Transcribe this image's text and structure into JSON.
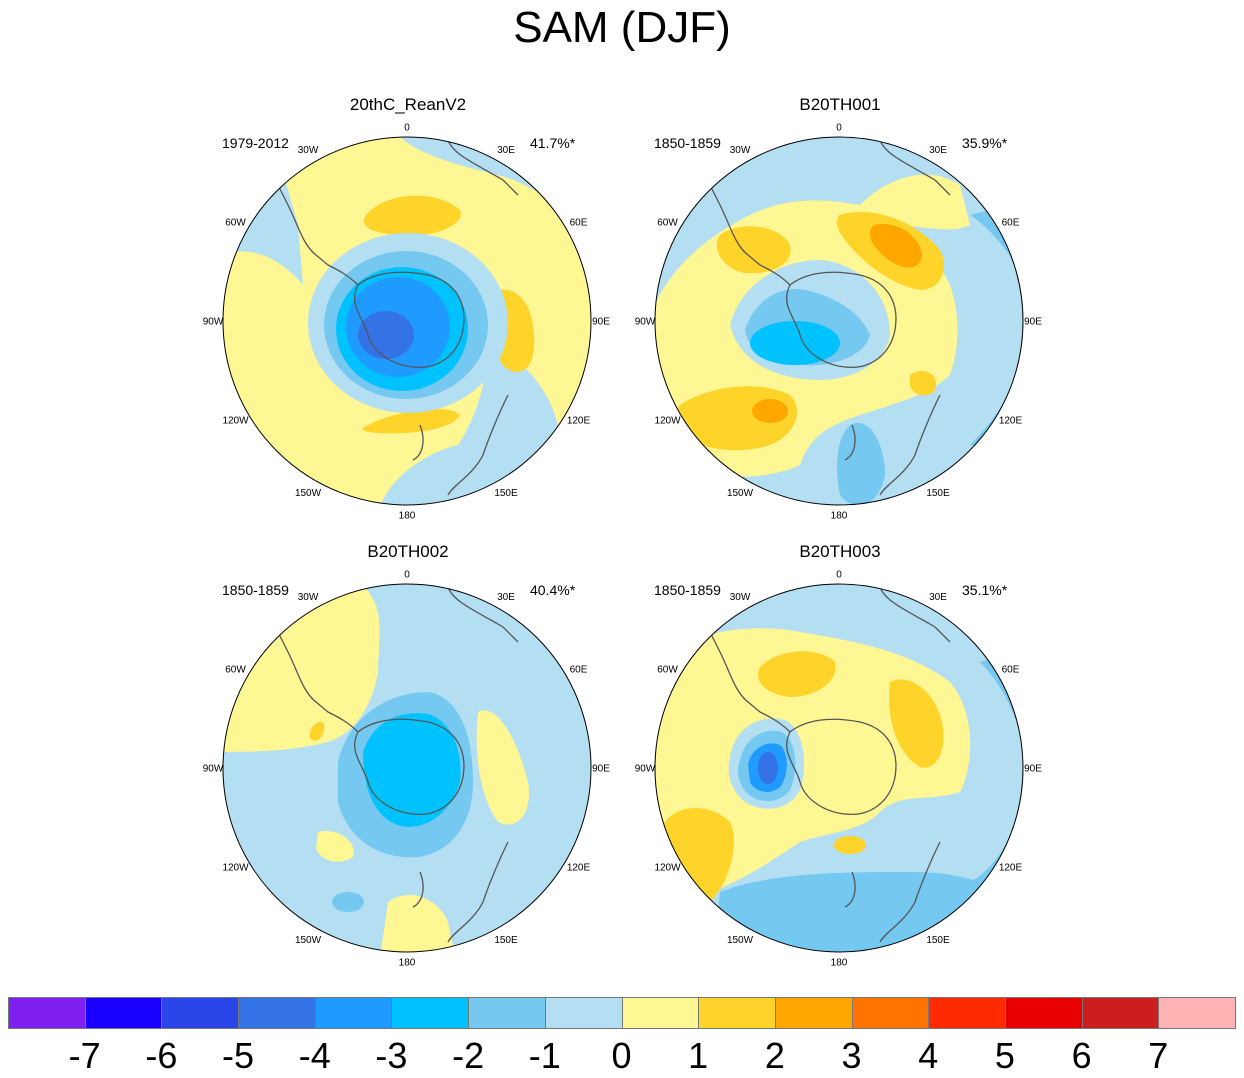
{
  "title": "SAM (DJF)",
  "lon_labels": [
    "0",
    "30E",
    "60E",
    "90E",
    "120E",
    "150E",
    "180",
    "150W",
    "120W",
    "90W",
    "60W",
    "30W"
  ],
  "panels": [
    {
      "title": "20thC_ReanV2",
      "period": "1979-2012",
      "variance": "41.7%*"
    },
    {
      "title": "B20TH001",
      "period": "1850-1859",
      "variance": "35.9%*"
    },
    {
      "title": "B20TH002",
      "period": "1850-1859",
      "variance": "40.4%*"
    },
    {
      "title": "B20TH003",
      "period": "1850-1859",
      "variance": "35.1%*"
    }
  ],
  "colorbar": {
    "colors": [
      "#7f1ff0",
      "#1a00ff",
      "#2b46e8",
      "#3473e6",
      "#1f9bff",
      "#00c2ff",
      "#75c8f0",
      "#b4def2",
      "#fff694",
      "#ffd42a",
      "#ffa600",
      "#ff7300",
      "#ff2a00",
      "#e80000",
      "#cc1e1e",
      "#ffb3b3"
    ],
    "labels": [
      "-7",
      "-6",
      "-5",
      "-4",
      "-3",
      "-2",
      "-1",
      "0",
      "1",
      "2",
      "3",
      "4",
      "5",
      "6",
      "7"
    ]
  },
  "chart_data": {
    "type": "heatmap",
    "title": "SAM (DJF)",
    "projection": "south polar stereographic",
    "units_range": [
      -7,
      7
    ],
    "contour_levels": [
      -7,
      -6,
      -5,
      -4,
      -3,
      -2,
      -1,
      0,
      1,
      2,
      3,
      4,
      5,
      6,
      7
    ],
    "panels": [
      {
        "name": "20thC_ReanV2",
        "period": "1979-2012",
        "explained_variance_pct": 41.7,
        "significant": true,
        "polar_minimum": -4,
        "midlatitude_maximum": 2
      },
      {
        "name": "B20TH001",
        "period": "1850-1859",
        "explained_variance_pct": 35.9,
        "significant": true,
        "polar_minimum": -3,
        "midlatitude_maximum": 3
      },
      {
        "name": "B20TH002",
        "period": "1850-1859",
        "explained_variance_pct": 40.4,
        "significant": true,
        "polar_minimum": -3,
        "midlatitude_maximum": 2
      },
      {
        "name": "B20TH003",
        "period": "1850-1859",
        "explained_variance_pct": 35.1,
        "significant": true,
        "polar_minimum": -4,
        "midlatitude_maximum": 2
      }
    ]
  }
}
